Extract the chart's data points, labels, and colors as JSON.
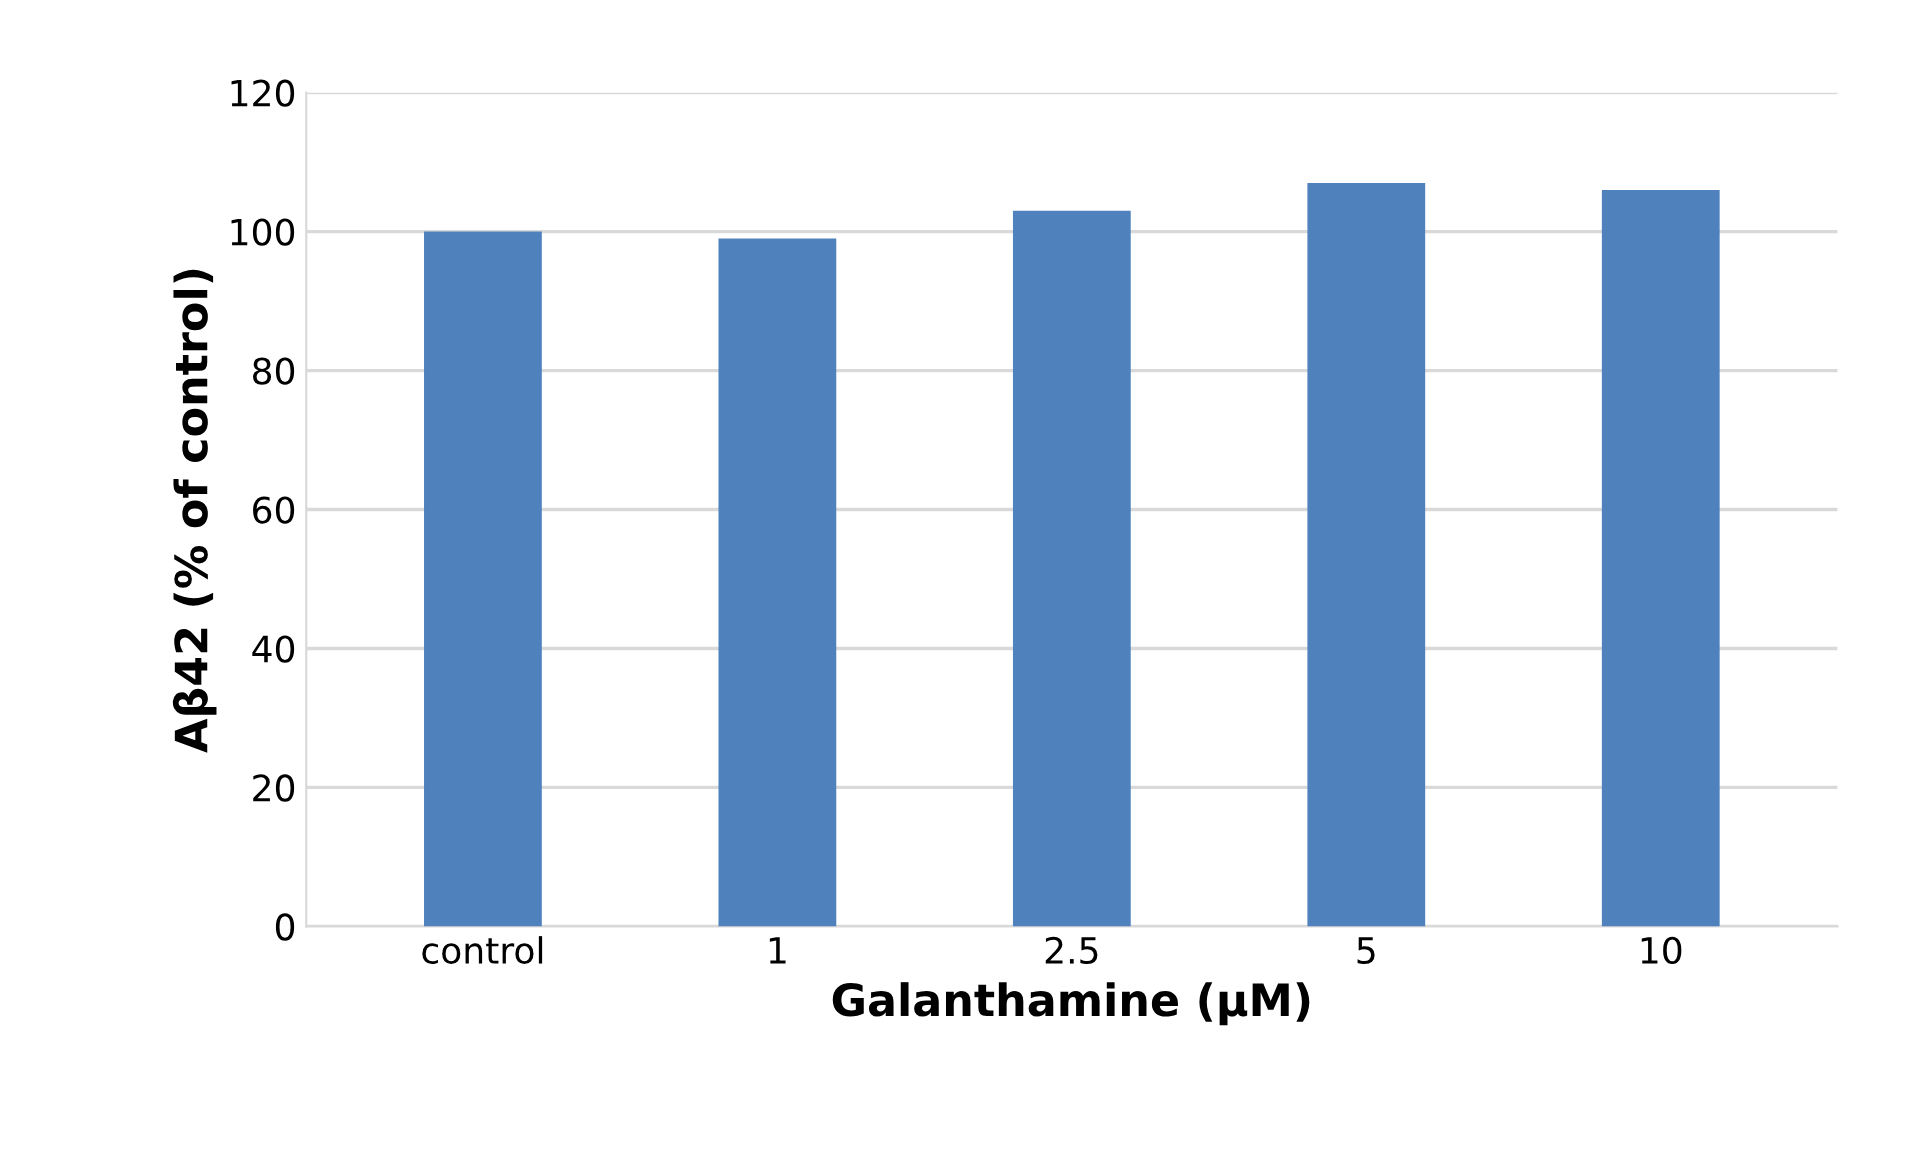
{
  "chart_data": {
    "type": "bar",
    "xlabel": "Galanthamine (µM)",
    "ylabel": "Aβ42 (% of control)",
    "categories": [
      "control",
      "1",
      "2.5",
      "5",
      "10"
    ],
    "values": [
      100,
      99,
      103,
      107,
      106
    ],
    "color": "#4f81bd",
    "ylim": [
      0,
      120
    ],
    "yticks": [
      0,
      20,
      40,
      60,
      80,
      100,
      120
    ],
    "grid": "y"
  }
}
